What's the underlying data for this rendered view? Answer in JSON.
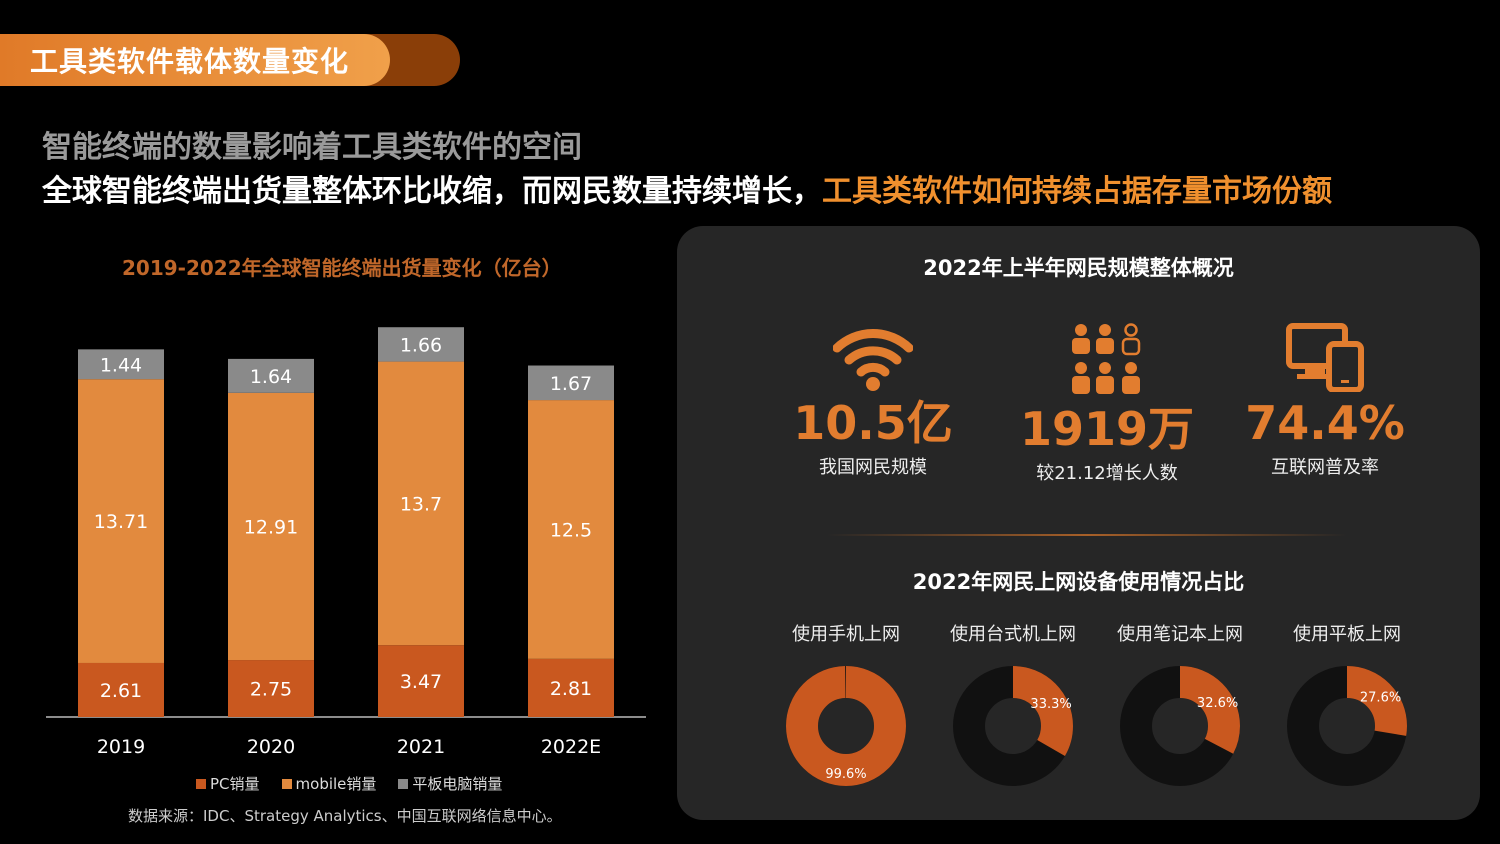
{
  "header": {
    "tab_title": "工具类软件载体数量变化",
    "subtitle1": "智能终端的数量影响着工具类软件的空间",
    "subtitle2_part1": "全球智能终端出货量整体环比收缩，而网民数量持续增长，",
    "subtitle2_part2": "工具类软件如何持续占据存量市场份额"
  },
  "colors": {
    "pc": "#c9581f",
    "mobile": "#e28a3e",
    "tablet": "#8a8a8a",
    "accent": "#e27d2f"
  },
  "chart_data": [
    {
      "type": "bar",
      "stacked": true,
      "title": "2019-2022年全球智能终端出货量变化（亿台）",
      "categories": [
        "2019",
        "2020",
        "2021",
        "2022E"
      ],
      "series": [
        {
          "name": "PC销量",
          "values": [
            2.61,
            2.75,
            3.47,
            2.81
          ]
        },
        {
          "name": "mobile销量",
          "values": [
            13.71,
            12.91,
            13.7,
            12.5
          ]
        },
        {
          "name": "平板电脑销量",
          "values": [
            1.44,
            1.64,
            1.66,
            1.67
          ]
        }
      ],
      "value_labels": [
        [
          "2.61",
          "2.75",
          "3.47",
          "2.81"
        ],
        [
          "13.71",
          "12.91",
          "13.7",
          "12.5"
        ],
        [
          "1.44",
          "1.64",
          "1.66",
          "1.67"
        ]
      ],
      "legend_position": "bottom",
      "grid": false
    },
    {
      "type": "pie",
      "title": "2022年网民上网设备使用情况占比",
      "categories": [
        "使用手机上网",
        "使用台式机上网",
        "使用笔记本上网",
        "使用平板上网"
      ],
      "values": [
        99.6,
        33.3,
        32.6,
        27.6
      ],
      "value_labels": [
        "99.6%",
        "33.3%",
        "32.6%",
        "27.6%"
      ]
    }
  ],
  "legend": {
    "pc": "PC销量",
    "mobile": "mobile销量",
    "tablet": "平板电脑销量"
  },
  "source": "数据来源：IDC、Strategy Analytics、中国互联网络信息中心。",
  "panel": {
    "title1": "2022年上半年网民规模整体概况",
    "stats": [
      {
        "icon": "wifi-icon",
        "value": "10.5亿",
        "label": "我国网民规模"
      },
      {
        "icon": "people-group-icon",
        "value": "1919万",
        "label": "较21.12增长人数"
      },
      {
        "icon": "devices-icon",
        "value": "74.4%",
        "label": "互联网普及率"
      }
    ],
    "title2": "2022年网民上网设备使用情况占比"
  }
}
